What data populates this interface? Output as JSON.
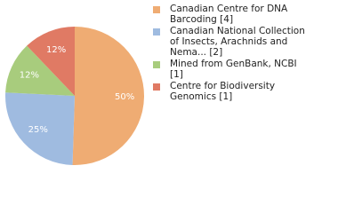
{
  "chart_data": {
    "type": "pie",
    "series": [
      {
        "name": "Canadian Centre for DNA Barcoding [4]",
        "color": "#efac73",
        "values": [
          50
        ],
        "value_labels": [
          "50%"
        ]
      },
      {
        "name": "Canadian National Collection of Insects, Arachnids and Nema... [2]",
        "color": "#9fbbe0",
        "values": [
          25
        ],
        "value_labels": [
          "25%"
        ]
      },
      {
        "name": "Mined from GenBank, NCBI [1]",
        "color": "#a8cc7d",
        "values": [
          12
        ],
        "value_labels": [
          "12%"
        ]
      },
      {
        "name": "Centre for Biodiversity Genomics [1]",
        "color": "#e07a64",
        "values": [
          12
        ],
        "value_labels": [
          "12%"
        ]
      }
    ]
  }
}
